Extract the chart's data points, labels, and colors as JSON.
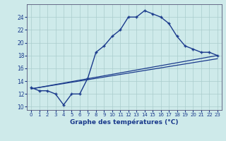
{
  "title": "Graphe des températures (°C)",
  "bg_color": "#ceeaea",
  "line_color": "#1a3a8c",
  "grid_color": "#aacccc",
  "xlim": [
    -0.5,
    23.5
  ],
  "ylim": [
    9.5,
    26
  ],
  "yticks": [
    10,
    12,
    14,
    16,
    18,
    20,
    22,
    24
  ],
  "xticks": [
    0,
    1,
    2,
    3,
    4,
    5,
    6,
    7,
    8,
    9,
    10,
    11,
    12,
    13,
    14,
    15,
    16,
    17,
    18,
    19,
    20,
    21,
    22,
    23
  ],
  "curve_x": [
    0,
    1,
    2,
    3,
    4,
    5,
    6,
    7,
    8,
    9,
    10,
    11,
    12,
    13,
    14,
    15,
    16,
    17,
    18,
    19,
    20,
    21,
    22,
    23
  ],
  "curve_y": [
    13.0,
    12.5,
    12.5,
    12.0,
    10.3,
    12.0,
    12.0,
    14.5,
    18.5,
    19.5,
    21.0,
    22.0,
    24.0,
    24.0,
    25.0,
    24.5,
    24.0,
    23.0,
    21.0,
    19.5,
    19.0,
    18.5,
    18.5,
    18.0
  ],
  "trend1_x": [
    0,
    23
  ],
  "trend1_y": [
    12.8,
    18.0
  ],
  "trend2_x": [
    0,
    23
  ],
  "trend2_y": [
    12.8,
    17.5
  ]
}
